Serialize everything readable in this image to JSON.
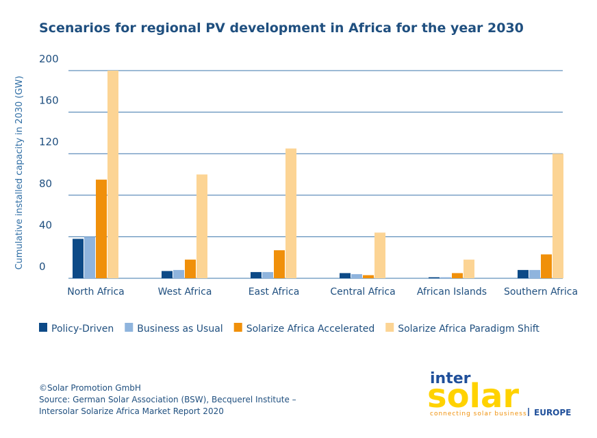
{
  "chart_data": {
    "type": "bar",
    "title": "Scenarios for regional PV development in Africa for the year 2030",
    "y_axis_label": "Cumulative installed capacity in 2030 (GW)",
    "categories": [
      "North Africa",
      "West Africa",
      "East Africa",
      "Central Africa",
      "African Islands",
      "Southern Africa"
    ],
    "series": [
      {
        "name": "Policy-Driven",
        "color": "#0d4a87",
        "values": [
          38,
          7,
          6,
          5,
          1,
          8
        ]
      },
      {
        "name": "Business as Usual",
        "color": "#8fb4dd",
        "values": [
          40,
          8,
          6,
          4,
          1,
          8
        ]
      },
      {
        "name": "Solarize Africa Accelerated",
        "color": "#f0900a",
        "values": [
          95,
          18,
          27,
          3,
          5,
          23
        ]
      },
      {
        "name": "Solarize Africa Paradigm Shift",
        "color": "#fcd494",
        "values": [
          200,
          100,
          125,
          44,
          18,
          120
        ]
      }
    ],
    "ylim": [
      0,
      200
    ],
    "yticks": [
      0,
      40,
      80,
      120,
      160,
      200
    ],
    "grid": true,
    "legend": "bottom"
  },
  "footer": {
    "lines": [
      "©Solar Promotion GmbH",
      "Source: German Solar Association (BSW), Becquerel Institute –",
      "Intersolar Solarize Africa Market Report 2020"
    ]
  },
  "logo": {
    "top": "inter",
    "main": "solar",
    "tagline": "connecting solar business",
    "region": "EUROPE"
  }
}
